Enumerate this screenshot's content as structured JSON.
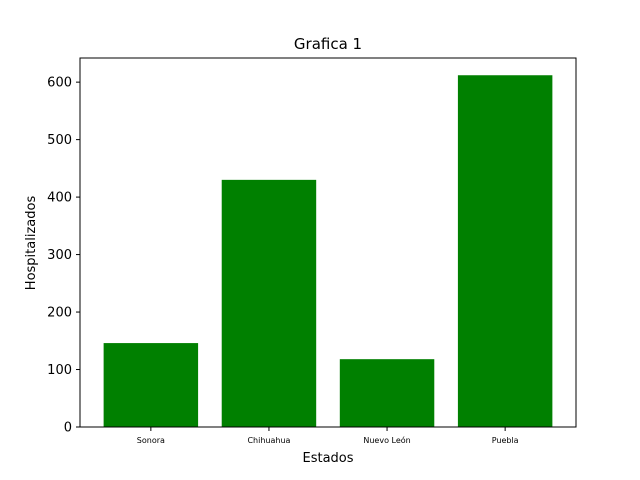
{
  "chart_data": {
    "type": "bar",
    "title": "Grafica 1",
    "xlabel": "Estados",
    "ylabel": "Hospitalizados",
    "categories": [
      "Sonora",
      "Chihuahua",
      "Nuevo León",
      "Puebla"
    ],
    "values": [
      146,
      430,
      118,
      612
    ],
    "ylim": [
      0,
      642
    ],
    "yticks": [
      0,
      100,
      200,
      300,
      400,
      500,
      600
    ],
    "bar_color": "#008000",
    "grid": false,
    "legend": "none"
  }
}
